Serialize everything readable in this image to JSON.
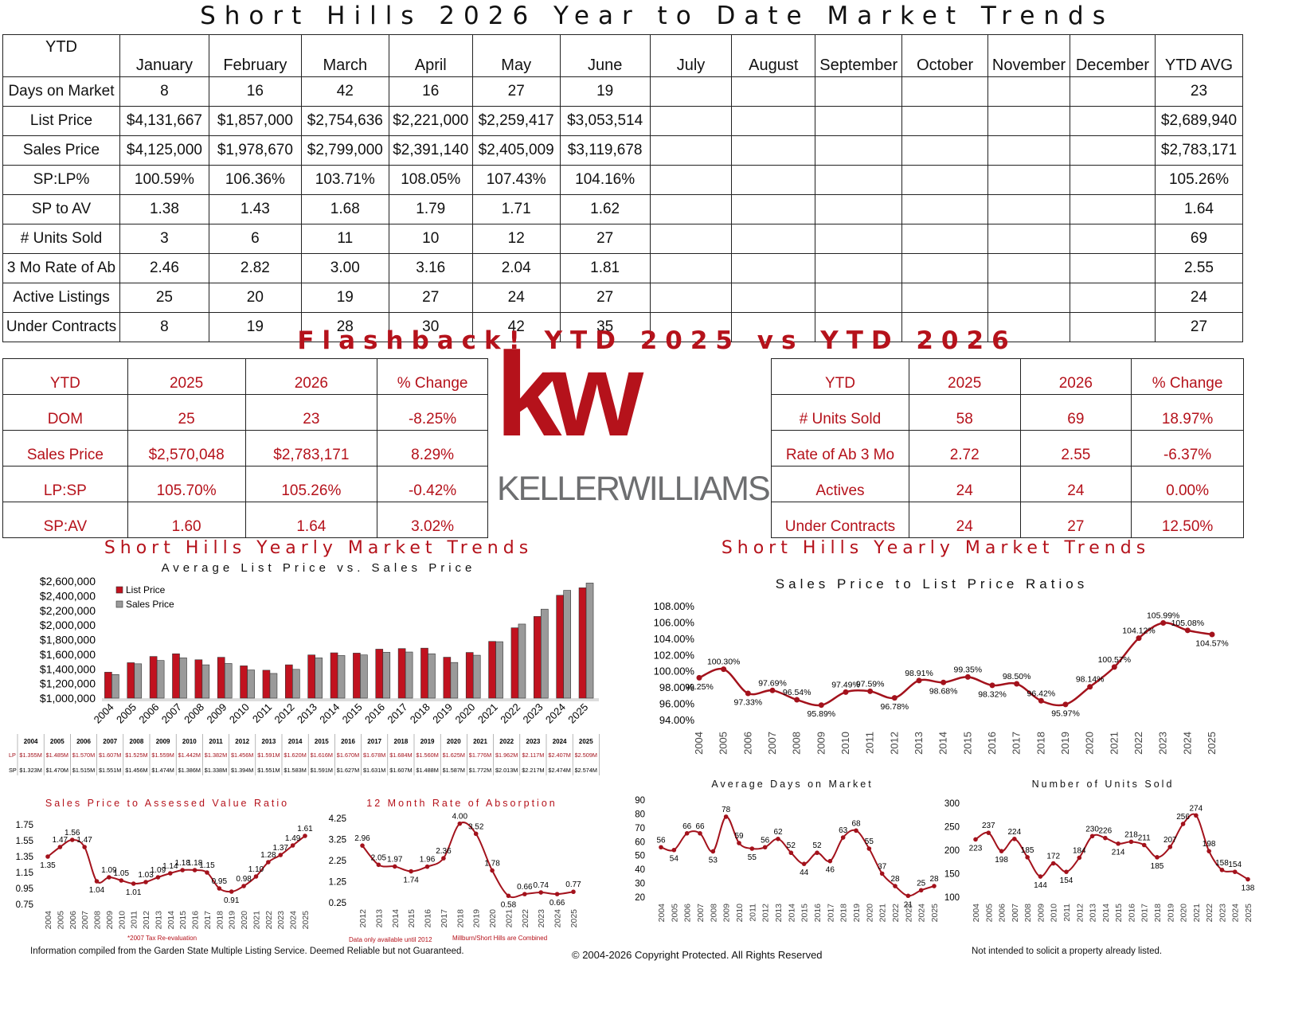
{
  "page": {
    "title": "Short Hills 2026 Year to Date Market Trends",
    "flashback_title": "Flashback!  YTD 2025 vs YTD 2026",
    "footer_left": "Information compiled from the Garden State Multiple Listing Service.  Deemed Reliable but not Guaranteed.",
    "footer_center": "© 2004-2026 Copyright Protected.  All Rights Reserved",
    "footer_right": "Not intended to solicit a property already listed.",
    "logo_letters": "kw",
    "logo_text": "KELLERWILLIAMS",
    "accent_color": "#b5121b",
    "logo_gray": "#6d6e70"
  },
  "ytd_table": {
    "corner": "YTD",
    "months": [
      "January",
      "February",
      "March",
      "April",
      "May",
      "June",
      "July",
      "August",
      "September",
      "October",
      "November",
      "December",
      "YTD AVG"
    ],
    "rows": [
      {
        "label": "Days on Market",
        "values": [
          "8",
          "16",
          "42",
          "16",
          "27",
          "19",
          "",
          "",
          "",
          "",
          "",
          "",
          "23"
        ]
      },
      {
        "label": "List Price",
        "values": [
          "$4,131,667",
          "$1,857,000",
          "$2,754,636",
          "$2,221,000",
          "$2,259,417",
          "$3,053,514",
          "",
          "",
          "",
          "",
          "",
          "",
          "$2,689,940"
        ]
      },
      {
        "label": "Sales Price",
        "values": [
          "$4,125,000",
          "$1,978,670",
          "$2,799,000",
          "$2,391,140",
          "$2,405,009",
          "$3,119,678",
          "",
          "",
          "",
          "",
          "",
          "",
          "$2,783,171"
        ]
      },
      {
        "label": "SP:LP%",
        "values": [
          "100.59%",
          "106.36%",
          "103.71%",
          "108.05%",
          "107.43%",
          "104.16%",
          "",
          "",
          "",
          "",
          "",
          "",
          "105.26%"
        ]
      },
      {
        "label": "SP to AV",
        "values": [
          "1.38",
          "1.43",
          "1.68",
          "1.79",
          "1.71",
          "1.62",
          "",
          "",
          "",
          "",
          "",
          "",
          "1.64"
        ]
      },
      {
        "label": "# Units Sold",
        "values": [
          "3",
          "6",
          "11",
          "10",
          "12",
          "27",
          "",
          "",
          "",
          "",
          "",
          "",
          "69"
        ]
      },
      {
        "label": "3 Mo Rate of Ab",
        "values": [
          "2.46",
          "2.82",
          "3.00",
          "3.16",
          "2.04",
          "1.81",
          "",
          "",
          "",
          "",
          "",
          "",
          "2.55"
        ]
      },
      {
        "label": "Active Listings",
        "values": [
          "25",
          "20",
          "19",
          "27",
          "24",
          "27",
          "",
          "",
          "",
          "",
          "",
          "",
          "24"
        ]
      },
      {
        "label": "Under Contracts",
        "values": [
          "8",
          "19",
          "28",
          "30",
          "42",
          "35",
          "",
          "",
          "",
          "",
          "",
          "",
          "27"
        ]
      }
    ]
  },
  "flashback_left": {
    "header": [
      "YTD",
      "2025",
      "2026",
      "% Change"
    ],
    "rows": [
      [
        "DOM",
        "25",
        "23",
        "-8.25%"
      ],
      [
        "Sales Price",
        "$2,570,048",
        "$2,783,171",
        "8.29%"
      ],
      [
        "LP:SP",
        "105.70%",
        "105.26%",
        "-0.42%"
      ],
      [
        "SP:AV",
        "1.60",
        "1.64",
        "3.02%"
      ]
    ]
  },
  "flashback_right": {
    "header": [
      "YTD",
      "2025",
      "2026",
      "% Change"
    ],
    "rows": [
      [
        "# Units Sold",
        "58",
        "69",
        "18.97%"
      ],
      [
        "Rate of Ab 3 Mo",
        "2.72",
        "2.55",
        "-6.37%"
      ],
      [
        "Actives",
        "24",
        "24",
        "0.00%"
      ],
      [
        "Under Contracts",
        "24",
        "27",
        "12.50%"
      ]
    ]
  },
  "chart_data": [
    {
      "id": "lp_sp_bar",
      "type": "bar",
      "title": "Short Hills Yearly Market Trends",
      "subtitle": "Average List Price vs. Sales Price",
      "categories": [
        "2004",
        "2005",
        "2006",
        "2007",
        "2008",
        "2009",
        "2010",
        "2011",
        "2012",
        "2013",
        "2014",
        "2015",
        "2016",
        "2017",
        "2018",
        "2019",
        "2020",
        "2021",
        "2022",
        "2023",
        "2024",
        "2025"
      ],
      "series": [
        {
          "name": "List Price",
          "color": "#c1121f",
          "values": [
            1355000,
            1485000,
            1570000,
            1607000,
            1525000,
            1559000,
            1442000,
            1382000,
            1456000,
            1591000,
            1620000,
            1616000,
            1670000,
            1678000,
            1684000,
            1560000,
            1625000,
            1776000,
            1962000,
            2117000,
            2407000,
            2509000
          ]
        },
        {
          "name": "Sales Price",
          "color": "#9a9a9a",
          "values": [
            1323000,
            1470000,
            1515000,
            1551000,
            1456000,
            1474000,
            1386000,
            1338000,
            1394000,
            1551000,
            1583000,
            1591000,
            1627000,
            1631000,
            1607000,
            1488000,
            1587000,
            1772000,
            2013000,
            2217000,
            2474000,
            2574000
          ]
        }
      ],
      "ylim": [
        1000000,
        2600000
      ],
      "yticks": [
        "$1,000,000",
        "$1,200,000",
        "$1,400,000",
        "$1,600,000",
        "$1,800,000",
        "$2,000,000",
        "$2,200,000",
        "$2,400,000",
        "$2,600,000"
      ],
      "legend": "top-left",
      "table_labels": {
        "lp_row_label": "LP",
        "sp_row_label": "SP",
        "lp": [
          "$1.355M",
          "$1.485M",
          "$1.570M",
          "$1.607M",
          "$1.525M",
          "$1.559M",
          "$1.442M",
          "$1.382M",
          "$1.456M",
          "$1.591M",
          "$1.620M",
          "$1.616M",
          "$1.670M",
          "$1.678M",
          "$1.684M",
          "$1.560M",
          "$1.625M",
          "$1.776M",
          "$1.962M",
          "$2.117M",
          "$2.407M",
          "$2.509M"
        ],
        "sp": [
          "$1.323M",
          "$1.470M",
          "$1.515M",
          "$1.551M",
          "$1.456M",
          "$1.474M",
          "$1.386M",
          "$1.338M",
          "$1.394M",
          "$1.551M",
          "$1.583M",
          "$1.591M",
          "$1.627M",
          "$1.631M",
          "$1.607M",
          "$1.488M",
          "$1.587M",
          "$1.772M",
          "$2.013M",
          "$2.217M",
          "$2.474M",
          "$2.574M"
        ]
      }
    },
    {
      "id": "sp_lp_ratio",
      "type": "line",
      "title": "Short Hills Yearly Market Trends",
      "subtitle": "Sales Price to List Price Ratios",
      "x": [
        "2004",
        "2005",
        "2006",
        "2007",
        "2008",
        "2009",
        "2010",
        "2011",
        "2012",
        "2013",
        "2014",
        "2015",
        "2016",
        "2017",
        "2018",
        "2019",
        "2020",
        "2021",
        "2022",
        "2023",
        "2024",
        "2025"
      ],
      "values": [
        99.25,
        100.3,
        97.33,
        97.69,
        96.54,
        95.89,
        97.49,
        97.59,
        96.78,
        98.91,
        98.68,
        99.35,
        98.32,
        98.5,
        96.42,
        95.97,
        98.14,
        100.57,
        104.12,
        105.99,
        105.08,
        104.57
      ],
      "labels": [
        "99.25%",
        "100.30%",
        "97.33%",
        "97.69%",
        "96.54%",
        "95.89%",
        "97.49%",
        "97.59%",
        "96.78%",
        "98.91%",
        "98.68%",
        "99.35%",
        "98.32%",
        "98.50%",
        "96.42%",
        "95.97%",
        "98.14%",
        "100.57%",
        "104.12%",
        "105.99%",
        "105.08%",
        "104.57%"
      ],
      "ylim": [
        94,
        108
      ],
      "yticks": [
        "94.00%",
        "96.00%",
        "98.00%",
        "100.00%",
        "102.00%",
        "104.00%",
        "106.00%",
        "108.00%"
      ]
    },
    {
      "id": "sp_av",
      "type": "line",
      "title": "Sales Price to Assessed Value Ratio",
      "note": "*2007 Tax Re-evaluation",
      "x": [
        "2004",
        "2005",
        "2006",
        "2007",
        "2008",
        "2009",
        "2010",
        "2011",
        "2012",
        "2013",
        "2014",
        "2015",
        "2016",
        "2017",
        "2018",
        "2019",
        "2020",
        "2021",
        "2022",
        "2023",
        "2024",
        "2025"
      ],
      "values": [
        1.35,
        1.47,
        1.56,
        1.47,
        1.04,
        1.09,
        1.05,
        1.01,
        1.03,
        1.09,
        1.14,
        1.18,
        1.18,
        1.15,
        0.95,
        0.91,
        0.98,
        1.1,
        1.28,
        1.37,
        1.49,
        1.61
      ],
      "labels": [
        "1.35",
        "1.47",
        "1.56",
        "1.47",
        "1.04",
        "1.09",
        "1.05",
        "1.01",
        "1.03",
        "1.09",
        "1.14",
        "1.18",
        "1.18",
        "1.15",
        "0.95",
        "0.91",
        "0.98",
        "1.10",
        "1.28",
        "1.37",
        "1.49",
        "1.61"
      ],
      "ylim": [
        0.75,
        1.75
      ],
      "yticks": [
        "0.75",
        "0.95",
        "1.15",
        "1.35",
        "1.55",
        "1.75"
      ]
    },
    {
      "id": "absorption",
      "type": "line",
      "title": "12 Month Rate of Absorption",
      "note_left": "Data only available until 2012",
      "note_right": "Millburn/Short Hills are Combined",
      "x": [
        "2012",
        "2013",
        "2014",
        "2015",
        "2016",
        "2017",
        "2018",
        "2019",
        "2020",
        "2021",
        "2022",
        "2023",
        "2024",
        "2025"
      ],
      "values": [
        2.96,
        2.05,
        1.97,
        1.74,
        1.96,
        2.36,
        4.0,
        3.52,
        1.78,
        0.58,
        0.66,
        0.74,
        0.66,
        0.77
      ],
      "labels": [
        "2.96",
        "2.05",
        "1.97",
        "1.74",
        "1.96",
        "2.36",
        "4.00",
        "3.52",
        "1.78",
        "0.58",
        "0.66",
        "0.74",
        "0.66",
        "0.77"
      ],
      "ylim": [
        0.25,
        4.25
      ],
      "yticks": [
        "0.25",
        "1.25",
        "2.25",
        "3.25",
        "4.25"
      ]
    },
    {
      "id": "dom",
      "type": "line",
      "title": "Average Days on Market",
      "x": [
        "2004",
        "2005",
        "2006",
        "2007",
        "2008",
        "2009",
        "2010",
        "2011",
        "2012",
        "2013",
        "2014",
        "2015",
        "2016",
        "2017",
        "2018",
        "2019",
        "2020",
        "2021",
        "2022",
        "2023",
        "2024",
        "2025"
      ],
      "values": [
        56,
        54,
        66,
        66,
        53,
        78,
        59,
        55,
        56,
        62,
        52,
        44,
        52,
        46,
        63,
        68,
        55,
        37,
        28,
        21,
        25,
        28
      ],
      "labels": [
        "56",
        "54",
        "66",
        "66",
        "53",
        "78",
        "59",
        "55",
        "56",
        "62",
        "52",
        "44",
        "52",
        "46",
        "63",
        "68",
        "55",
        "37",
        "28",
        "21",
        "25",
        "28"
      ],
      "ylim": [
        20,
        90
      ],
      "yticks": [
        "20",
        "30",
        "40",
        "50",
        "60",
        "70",
        "80",
        "90"
      ]
    },
    {
      "id": "units",
      "type": "line",
      "title": "Number of Units Sold",
      "x": [
        "2004",
        "2005",
        "2006",
        "2007",
        "2008",
        "2009",
        "2010",
        "2011",
        "2012",
        "2013",
        "2014",
        "2015",
        "2016",
        "2017",
        "2018",
        "2019",
        "2020",
        "2021",
        "2022",
        "2023",
        "2024",
        "2025"
      ],
      "values": [
        223,
        237,
        198,
        224,
        185,
        144,
        172,
        154,
        184,
        230,
        226,
        214,
        218,
        211,
        185,
        207,
        256,
        274,
        198,
        158,
        154,
        138
      ],
      "labels": [
        "223",
        "237",
        "198",
        "224",
        "185",
        "144",
        "172",
        "154",
        "184",
        "230",
        "226",
        "214",
        "218",
        "211",
        "185",
        "207",
        "256",
        "274",
        "198",
        "158",
        "154",
        "138"
      ],
      "ylim": [
        100,
        300
      ],
      "yticks": [
        "100",
        "150",
        "200",
        "250",
        "300"
      ]
    }
  ]
}
